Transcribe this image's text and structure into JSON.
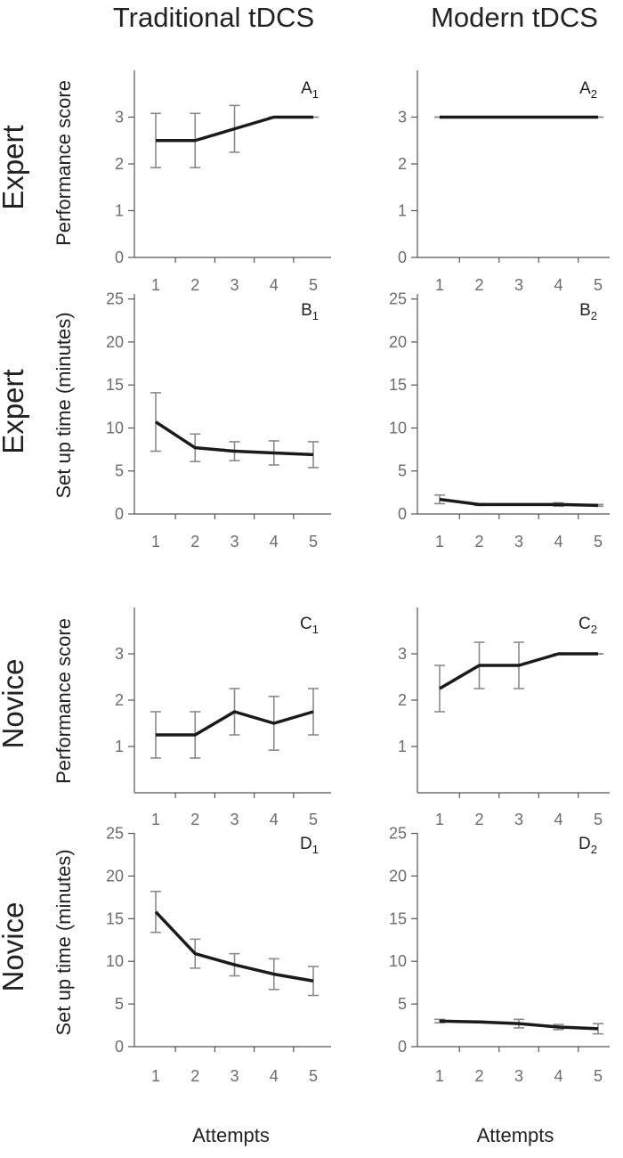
{
  "figure": {
    "column_titles": [
      "Traditional tDCS",
      "Modern tDCS"
    ],
    "row_labels": [
      "Expert",
      "Expert",
      "Novice",
      "Novice"
    ],
    "row_ylabels": [
      "Performance score",
      "Set up time (minutes)",
      "Performance score",
      "Set up time (minutes)"
    ],
    "xlabel": "Attempts"
  },
  "chart_data": [
    {
      "id": "A1",
      "letter": "A",
      "subscript": "1",
      "type": "line",
      "x": [
        1,
        2,
        3,
        4,
        5
      ],
      "values": [
        2.5,
        2.5,
        2.75,
        3,
        3
      ],
      "errors": [
        0.58,
        0.58,
        0.5,
        0,
        0
      ],
      "ylim": [
        0,
        4
      ],
      "yticks": [
        0,
        1,
        2,
        3
      ],
      "xticks": [
        1,
        2,
        3,
        4,
        5
      ],
      "ylabel": "Performance score",
      "xlabel": ""
    },
    {
      "id": "A2",
      "letter": "A",
      "subscript": "2",
      "type": "line",
      "x": [
        1,
        2,
        3,
        4,
        5
      ],
      "values": [
        3,
        3,
        3,
        3,
        3
      ],
      "errors": [
        0,
        0,
        0,
        0,
        0
      ],
      "ylim": [
        0,
        4
      ],
      "yticks": [
        0,
        1,
        2,
        3
      ],
      "xticks": [
        1,
        2,
        3,
        4,
        5
      ],
      "ylabel": "",
      "xlabel": ""
    },
    {
      "id": "B1",
      "letter": "B",
      "subscript": "1",
      "type": "line",
      "x": [
        1,
        2,
        3,
        4,
        5
      ],
      "values": [
        10.7,
        7.7,
        7.3,
        7.1,
        6.9
      ],
      "errors": [
        3.4,
        1.6,
        1.1,
        1.4,
        1.5
      ],
      "ylim": [
        0,
        26
      ],
      "yticks": [
        0,
        5,
        10,
        15,
        20,
        25
      ],
      "xticks": [
        1,
        2,
        3,
        4,
        5
      ],
      "ylabel": "Set up time (minutes)",
      "xlabel": ""
    },
    {
      "id": "B2",
      "letter": "B",
      "subscript": "2",
      "type": "line",
      "x": [
        1,
        2,
        3,
        4,
        5
      ],
      "values": [
        1.7,
        1.1,
        1.1,
        1.1,
        1.0
      ],
      "errors": [
        0.5,
        0.1,
        0.05,
        0.2,
        0.1
      ],
      "ylim": [
        0,
        26
      ],
      "yticks": [
        0,
        5,
        10,
        15,
        20,
        25
      ],
      "xticks": [
        1,
        2,
        3,
        4,
        5
      ],
      "ylabel": "",
      "xlabel": ""
    },
    {
      "id": "C1",
      "letter": "C",
      "subscript": "1",
      "type": "line",
      "x": [
        1,
        2,
        3,
        4,
        5
      ],
      "values": [
        1.25,
        1.25,
        1.75,
        1.5,
        1.75
      ],
      "errors": [
        0.5,
        0.5,
        0.5,
        0.58,
        0.5
      ],
      "ylim": [
        0,
        4
      ],
      "yticks": [
        1,
        2,
        3
      ],
      "xticks": [
        1,
        2,
        3,
        4,
        5
      ],
      "ylabel": "Performance score",
      "xlabel": ""
    },
    {
      "id": "C2",
      "letter": "C",
      "subscript": "2",
      "type": "line",
      "x": [
        1,
        2,
        3,
        4,
        5
      ],
      "values": [
        2.25,
        2.75,
        2.75,
        3,
        3
      ],
      "errors": [
        0.5,
        0.5,
        0.5,
        0,
        0
      ],
      "ylim": [
        0,
        4
      ],
      "yticks": [
        1,
        2,
        3
      ],
      "xticks": [
        1,
        2,
        3,
        4,
        5
      ],
      "ylabel": "",
      "xlabel": ""
    },
    {
      "id": "D1",
      "letter": "D",
      "subscript": "1",
      "type": "line",
      "x": [
        1,
        2,
        3,
        4,
        5
      ],
      "values": [
        15.8,
        10.9,
        9.6,
        8.5,
        7.7
      ],
      "errors": [
        2.4,
        1.7,
        1.3,
        1.8,
        1.7
      ],
      "ylim": [
        0,
        26
      ],
      "yticks": [
        0,
        5,
        10,
        15,
        20,
        25
      ],
      "xticks": [
        1,
        2,
        3,
        4,
        5
      ],
      "ylabel": "Set up time (minutes)",
      "xlabel": "Attempts"
    },
    {
      "id": "D2",
      "letter": "D",
      "subscript": "2",
      "type": "line",
      "x": [
        1,
        2,
        3,
        4,
        5
      ],
      "values": [
        3.0,
        2.9,
        2.7,
        2.3,
        2.1
      ],
      "errors": [
        0.2,
        0.1,
        0.5,
        0.3,
        0.6
      ],
      "ylim": [
        0,
        26
      ],
      "yticks": [
        0,
        5,
        10,
        15,
        20,
        25
      ],
      "xticks": [
        1,
        2,
        3,
        4,
        5
      ],
      "ylabel": "",
      "xlabel": "Attempts"
    }
  ]
}
